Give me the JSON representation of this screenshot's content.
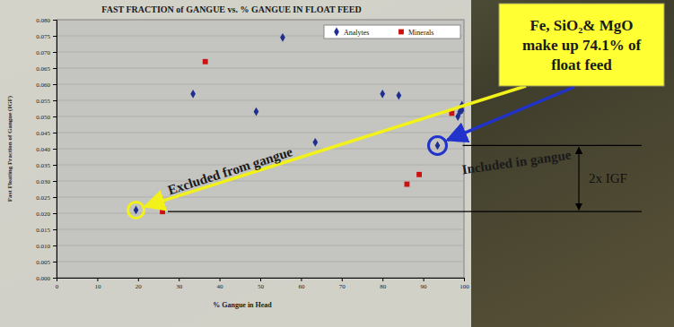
{
  "chart_data": {
    "type": "scatter",
    "title": "FAST FRACTION of GANGUE vs. % GANGUE IN FLOAT FEED",
    "x_label": "% Gangue in Head",
    "y_label": "Fast Floating Fraction of Gangue (IGF)",
    "xlim": [
      0,
      100
    ],
    "ylim": [
      0,
      0.08
    ],
    "xticks": [
      0,
      10,
      20,
      30,
      40,
      50,
      60,
      70,
      80,
      90,
      100
    ],
    "yticks": [
      {
        "value": 0,
        "label": "0.000"
      },
      {
        "value": 0.005,
        "label": "0.005"
      },
      {
        "value": 0.01,
        "label": "0.010"
      },
      {
        "value": 0.015,
        "label": "0.015"
      },
      {
        "value": 0.02,
        "label": "0.020"
      },
      {
        "value": 0.025,
        "label": "0.025"
      },
      {
        "value": 0.03,
        "label": "0.030"
      },
      {
        "value": 0.035,
        "label": "0.035"
      },
      {
        "value": 0.04,
        "label": "0.040"
      },
      {
        "value": 0.045,
        "label": "0.045"
      },
      {
        "value": 0.05,
        "label": "0.050"
      },
      {
        "value": 0.055,
        "label": "0.055"
      },
      {
        "value": 0.06,
        "label": "0.060"
      },
      {
        "value": 0.065,
        "label": "0.065"
      },
      {
        "value": 0.07,
        "label": "0.070"
      },
      {
        "value": 0.075,
        "label": "0.075"
      },
      {
        "value": 0.08,
        "label": "0.080"
      }
    ],
    "grid": true,
    "legend": "upper right",
    "series": [
      {
        "name": "Analytes",
        "color": "#1f2f8f",
        "marker": "diamond",
        "x": [
          19.5,
          33.5,
          49,
          55.5,
          63.5,
          80,
          84,
          93.5,
          98.5,
          99,
          99.5,
          99.5
        ],
        "values": [
          0.021,
          0.057,
          0.0515,
          0.0745,
          0.042,
          0.057,
          0.0565,
          0.041,
          0.05,
          0.0515,
          0.0535,
          0.052
        ]
      },
      {
        "name": "Minerals",
        "color": "#cc1111",
        "marker": "square",
        "x": [
          26,
          36.5,
          86,
          89,
          97
        ],
        "values": [
          0.0205,
          0.067,
          0.029,
          0.032,
          0.051
        ]
      }
    ],
    "annotations": [
      {
        "text": "Fe, SiO₂& MgO make up 74.1% of float feed"
      },
      {
        "text": "Excluded from gangue"
      },
      {
        "text": "Included in gangue"
      },
      {
        "text": "2x IGF"
      }
    ]
  }
}
